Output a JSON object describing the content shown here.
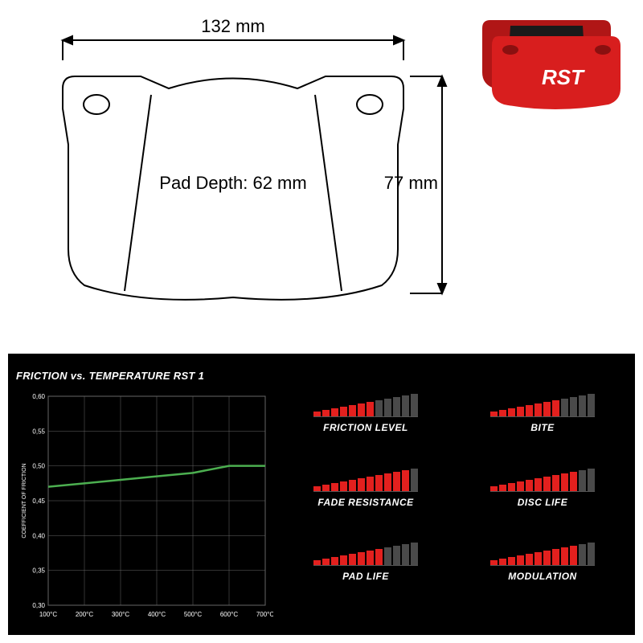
{
  "diagram": {
    "width_label": "132 mm",
    "height_label": "77 mm",
    "depth_label": "Pad Depth: 62 mm",
    "stroke_color": "#000000",
    "stroke_width": 2,
    "label_fontsize": 22,
    "label_font": "sans-serif"
  },
  "product": {
    "brand": "RST",
    "body_color": "#d81e1e",
    "insert_color": "#1a1a1a",
    "shadow_color": "#b01616"
  },
  "chart": {
    "title": "FRICTION vs. TEMPERATURE RST 1",
    "xlabel_ticks": [
      "100°C",
      "200°C",
      "300°C",
      "400°C",
      "500°C",
      "600°C",
      "700°C"
    ],
    "ylabel": "COEFFICIENT OF FRICTION",
    "ylabel_ticks": [
      "0,30",
      "0,35",
      "0,40",
      "0,45",
      "0,50",
      "0,55",
      "0,60"
    ],
    "ylim": [
      0.3,
      0.6
    ],
    "xlim": [
      100,
      700
    ],
    "line_color": "#4caf50",
    "grid_color": "#666666",
    "text_color": "#ffffff",
    "line_data": [
      {
        "x": 100,
        "y": 0.47
      },
      {
        "x": 200,
        "y": 0.475
      },
      {
        "x": 300,
        "y": 0.48
      },
      {
        "x": 400,
        "y": 0.485
      },
      {
        "x": 500,
        "y": 0.49
      },
      {
        "x": 600,
        "y": 0.5
      },
      {
        "x": 700,
        "y": 0.5
      }
    ],
    "tick_fontsize": 8,
    "title_fontsize": 13
  },
  "ratings": {
    "bar_count": 12,
    "bar_heights": [
      6,
      8,
      10,
      12,
      14,
      16,
      18,
      20,
      22,
      24,
      26,
      28
    ],
    "active_color": "#e3201e",
    "inactive_color": "#4a4a4a",
    "items": [
      {
        "label": "FRICTION LEVEL",
        "value": 7
      },
      {
        "label": "BITE",
        "value": 8
      },
      {
        "label": "FADE RESISTANCE",
        "value": 11
      },
      {
        "label": "DISC LIFE",
        "value": 10
      },
      {
        "label": "PAD LIFE",
        "value": 8
      },
      {
        "label": "MODULATION",
        "value": 10
      }
    ]
  }
}
